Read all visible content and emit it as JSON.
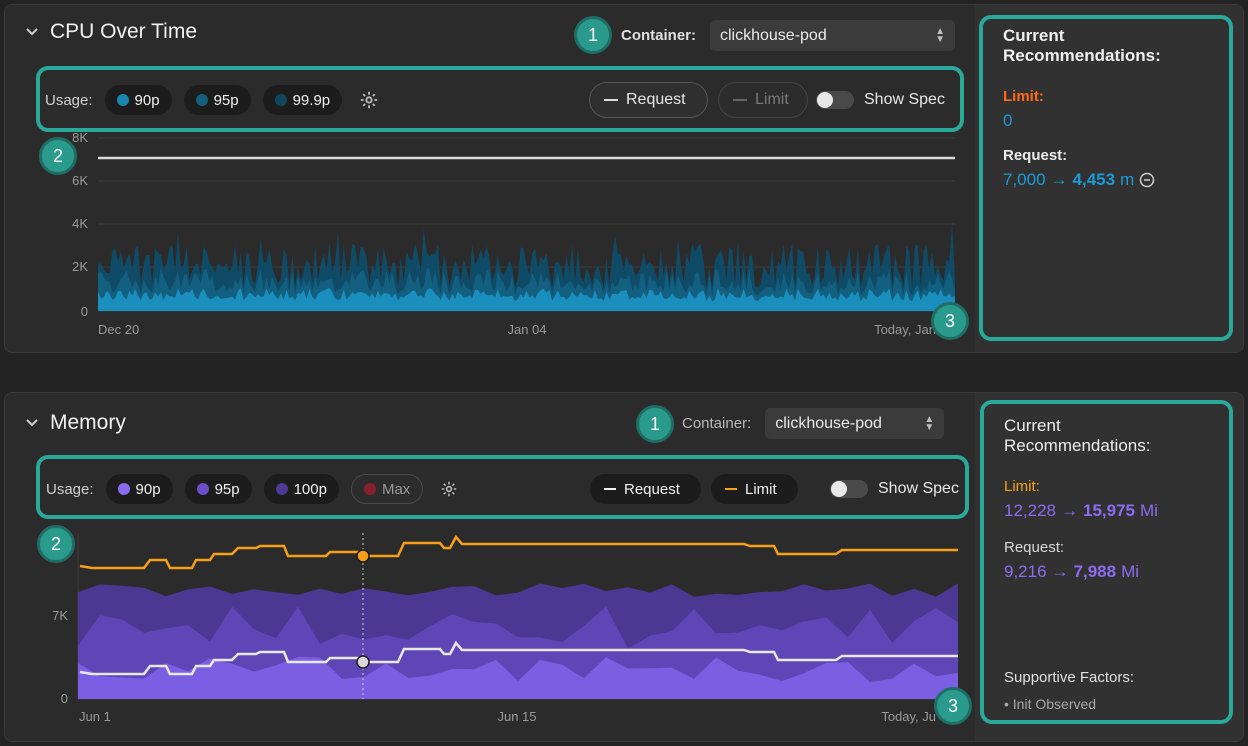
{
  "cpu": {
    "title": "CPU Over Time",
    "container_label": "Container:",
    "container_value": "clickhouse-pod",
    "usage_label": "Usage:",
    "usage_pills": [
      {
        "label": "90p",
        "color": "#1a86b0"
      },
      {
        "label": "95p",
        "color": "#155e7c"
      },
      {
        "label": "99.9p",
        "color": "#11465c"
      }
    ],
    "request_label": "Request",
    "limit_label": "Limit",
    "show_spec_label": "Show Spec",
    "y_ticks": [
      "8K",
      "6K",
      "4K",
      "2K",
      "0"
    ],
    "x_ticks": [
      "Dec 20",
      "Jan 04",
      "Today, Jan"
    ],
    "recommendations": {
      "heading": "Current Recommendations:",
      "limit_label": "Limit:",
      "limit_value": "0",
      "request_label": "Request:",
      "request_from": "7,000",
      "arrow": "→",
      "request_to": "4,453",
      "request_unit": "m"
    }
  },
  "memory": {
    "title": "Memory",
    "container_label": "Container:",
    "container_value": "clickhouse-pod",
    "usage_label": "Usage:",
    "usage_pills": [
      {
        "label": "90p",
        "color": "#8a6cf0"
      },
      {
        "label": "95p",
        "color": "#6a4fc8"
      },
      {
        "label": "100p",
        "color": "#4d3a96"
      }
    ],
    "max_label": "Max",
    "request_label": "Request",
    "limit_label": "Limit",
    "show_spec_label": "Show Spec",
    "y_ticks": [
      "7K",
      "0"
    ],
    "x_ticks": [
      "Jun 1",
      "Jun 15",
      "Today, Ju"
    ],
    "recommendations": {
      "heading": "Current Recommendations:",
      "limit_label": "Limit:",
      "limit_from": "12,228",
      "arrow": "→",
      "limit_to": "15,975",
      "limit_unit": "Mi",
      "request_label": "Request:",
      "request_from": "9,216",
      "request_to": "7,988",
      "request_unit": "Mi",
      "supportive_label": "Supportive Factors:",
      "supportive_items": [
        "Init Observed"
      ]
    }
  },
  "callouts": [
    "1",
    "2",
    "3"
  ],
  "colors": {
    "highlight": "#2aa899",
    "cpu_accent": "#1a9ad6",
    "memory_accent": "#8b6cf2",
    "limit_orange": "#f6a01a",
    "cpu_limit_red": "#ff6a1a"
  }
}
